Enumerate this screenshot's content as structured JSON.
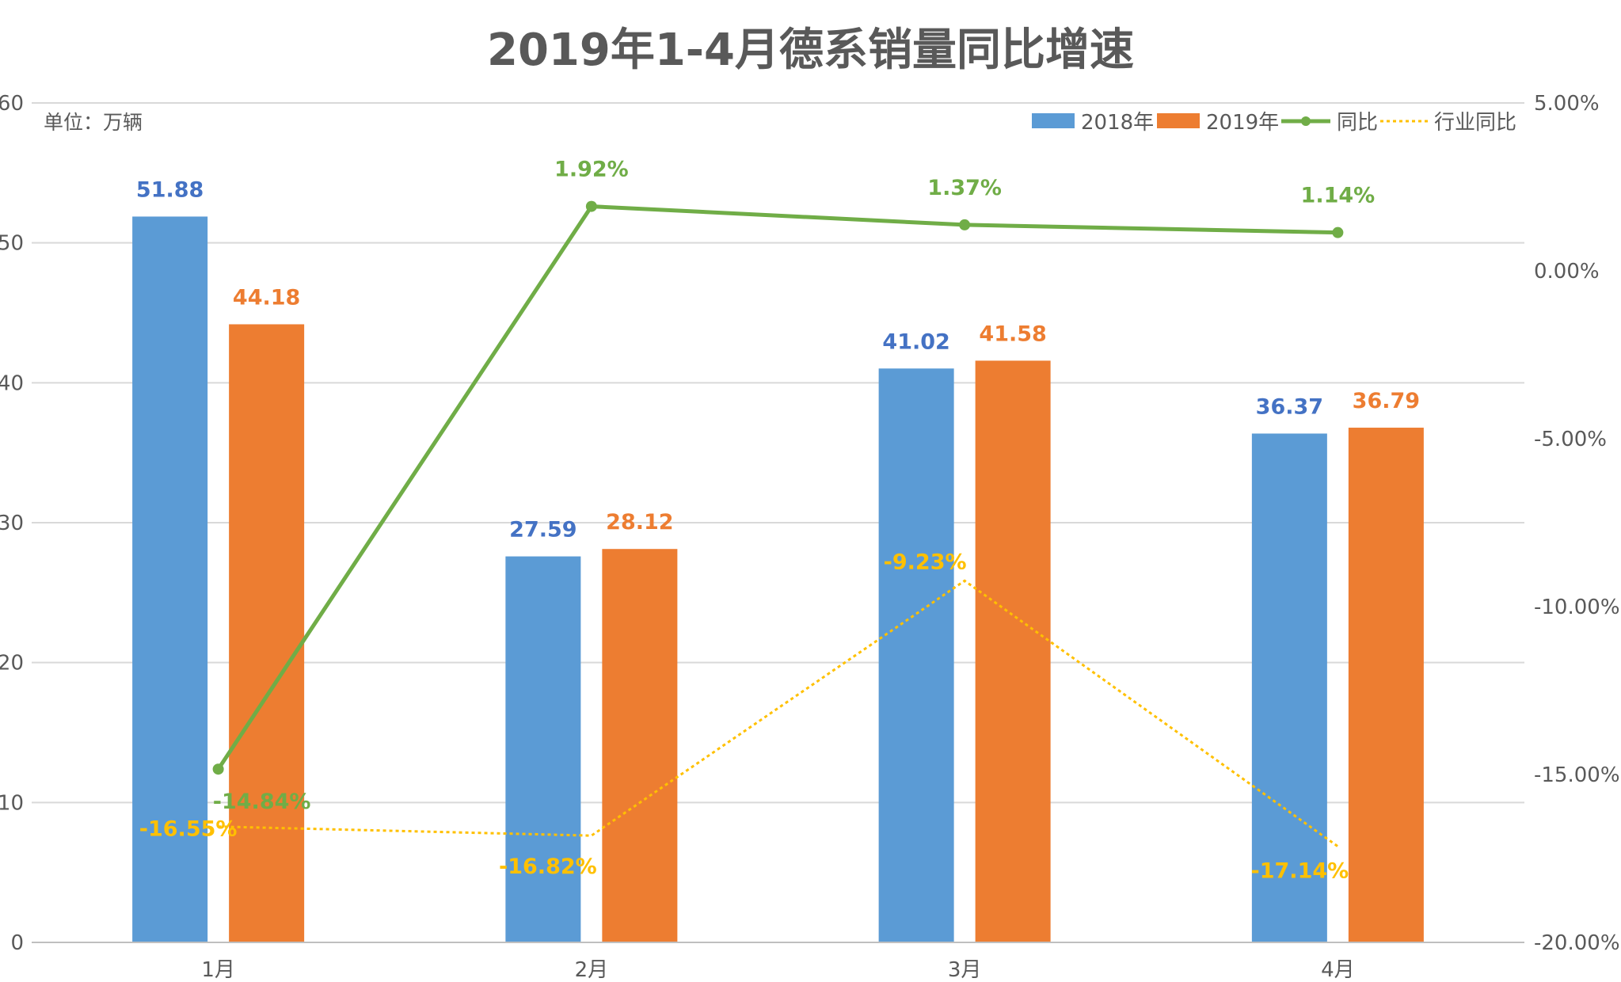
{
  "title": "2019年1-4月德系销量同比增速",
  "unit_label": "单位：万辆",
  "colors": {
    "bar2018": "#5B9BD5",
    "bar2019": "#ED7D31",
    "yoy": "#70AD47",
    "industry": "#FFC000",
    "label2018": "#4472C4",
    "grid": "#D9D9D9",
    "axis_text": "#595959"
  },
  "chart_data": {
    "type": "bar",
    "title": "2019年1-4月德系销量同比增速",
    "categories": [
      "1月",
      "2月",
      "3月",
      "4月"
    ],
    "series": [
      {
        "name": "2018年",
        "kind": "bar",
        "axis": "left",
        "values": [
          51.88,
          27.59,
          41.02,
          36.37
        ],
        "labels": [
          "51.88",
          "27.59",
          "41.02",
          "36.37"
        ]
      },
      {
        "name": "2019年",
        "kind": "bar",
        "axis": "left",
        "values": [
          44.18,
          28.12,
          41.58,
          36.79
        ],
        "labels": [
          "44.18",
          "28.12",
          "41.58",
          "36.79"
        ]
      },
      {
        "name": "同比",
        "kind": "line",
        "axis": "right",
        "values": [
          -14.84,
          1.92,
          1.37,
          1.14
        ],
        "labels": [
          "-14.84%",
          "1.92%",
          "1.37%",
          "1.14%"
        ]
      },
      {
        "name": "行业同比",
        "kind": "dotted-line",
        "axis": "right",
        "values": [
          -16.55,
          -16.82,
          -9.23,
          -17.14
        ],
        "labels": [
          "-16.55%",
          "-16.82%",
          "-9.23%",
          "-17.14%"
        ]
      }
    ],
    "y_left": {
      "min": 0,
      "max": 60,
      "ticks": [
        0,
        10,
        20,
        30,
        40,
        50,
        60
      ],
      "tick_labels": [
        "0",
        "10",
        "20",
        "30",
        "40",
        "50",
        "60"
      ]
    },
    "y_right": {
      "min": -20,
      "max": 5,
      "ticks": [
        -20,
        -15,
        -10,
        -5,
        0,
        5
      ],
      "tick_labels": [
        "-20.00%",
        "-15.00%",
        "-10.00%",
        "-5.00%",
        "0.00%",
        "5.00%"
      ]
    },
    "grid": true,
    "legend_position": "top-right"
  }
}
